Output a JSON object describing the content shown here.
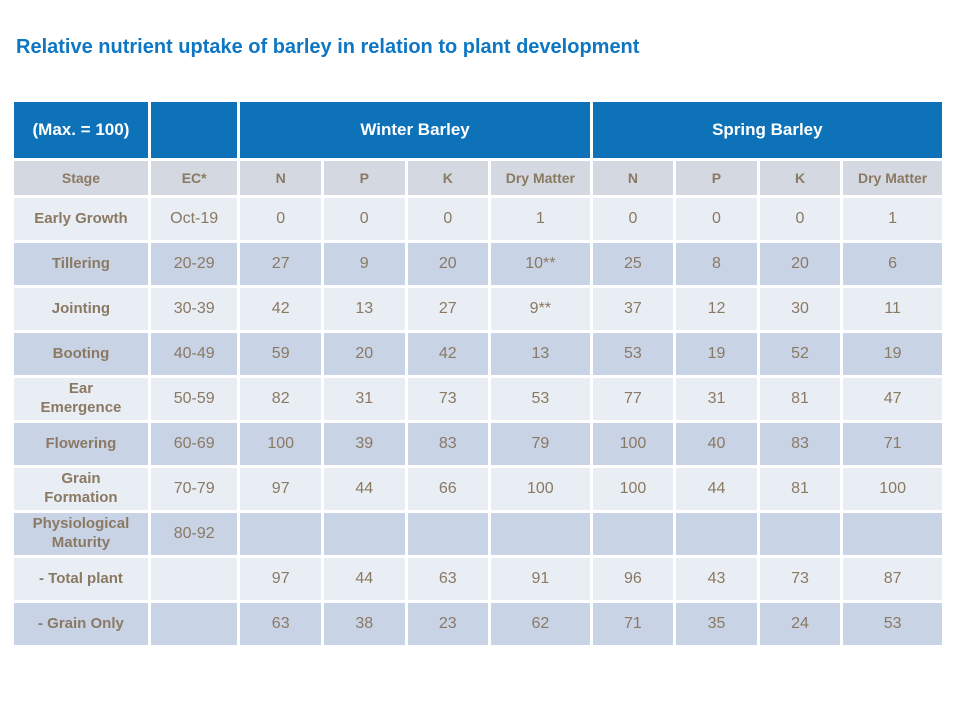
{
  "title": "Relative nutrient uptake of barley in relation to plant development",
  "table": {
    "top_header": {
      "max_label": "(Max. = 100)",
      "ec_spacer": "",
      "winter_label": "Winter Barley",
      "spring_label": "Spring Barley"
    },
    "columns": [
      "Stage",
      "EC*",
      "N",
      "P",
      "K",
      "Dry Matter",
      "N",
      "P",
      "K",
      "Dry Matter"
    ],
    "rows": [
      {
        "stage": "Early Growth",
        "ec": "Oct-19",
        "values": [
          "0",
          "0",
          "0",
          "1",
          "0",
          "0",
          "0",
          "1"
        ]
      },
      {
        "stage": "Tillering",
        "ec": "20-29",
        "values": [
          "27",
          "9",
          "20",
          "10**",
          "25",
          "8",
          "20",
          "6"
        ]
      },
      {
        "stage": "Jointing",
        "ec": "30-39",
        "values": [
          "42",
          "13",
          "27",
          "9**",
          "37",
          "12",
          "30",
          "11"
        ]
      },
      {
        "stage": "Booting",
        "ec": "40-49",
        "values": [
          "59",
          "20",
          "42",
          "13",
          "53",
          "19",
          "52",
          "19"
        ]
      },
      {
        "stage": "Ear\nEmergence",
        "ec": "50-59",
        "values": [
          "82",
          "31",
          "73",
          "53",
          "77",
          "31",
          "81",
          "47"
        ]
      },
      {
        "stage": "Flowering",
        "ec": "60-69",
        "values": [
          "100",
          "39",
          "83",
          "79",
          "100",
          "40",
          "83",
          "71"
        ]
      },
      {
        "stage": "Grain\nFormation",
        "ec": "70-79",
        "values": [
          "97",
          "44",
          "66",
          "100",
          "100",
          "44",
          "81",
          "100"
        ]
      },
      {
        "stage": "Physiological\nMaturity",
        "ec": "80-92",
        "values": [
          "",
          "",
          "",
          "",
          "",
          "",
          "",
          ""
        ]
      },
      {
        "stage": "- Total plant",
        "ec": "",
        "values": [
          "97",
          "44",
          "63",
          "91",
          "96",
          "43",
          "73",
          "87"
        ]
      },
      {
        "stage": "- Grain Only",
        "ec": "",
        "values": [
          "63",
          "38",
          "23",
          "62",
          "71",
          "35",
          "24",
          "53"
        ]
      }
    ]
  },
  "colors": {
    "title_blue": "#0e76c2",
    "header_blue": "#0d72b8",
    "subheader_bg": "#d3d8e1",
    "row_light": "#e9edf4",
    "row_dark": "#c9d3e6",
    "text_brown": "#8a7963",
    "grid_white": "#ffffff"
  }
}
